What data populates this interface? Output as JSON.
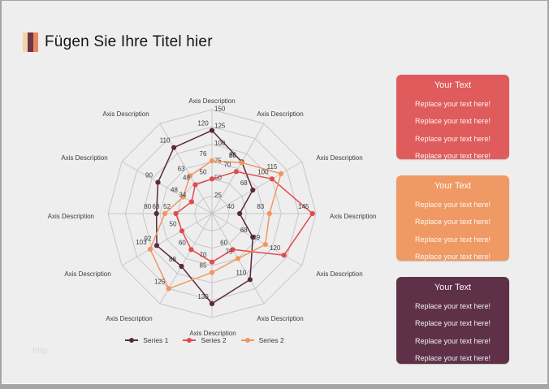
{
  "page": {
    "background": "#efeeef",
    "border_color": "#a6a4a6",
    "watermark": "http"
  },
  "header": {
    "title": "Fügen Sie Ihre Titel hier",
    "icon_bars": [
      "#f2d5a5",
      "#6e3648",
      "#e8875f"
    ]
  },
  "chart_data": {
    "type": "radar",
    "title": "",
    "axes": [
      "Axis Description",
      "Axis Description",
      "Axis Description",
      "Axis Description",
      "Axis Description",
      "Axis Description",
      "Axis Description",
      "Axis Description",
      "Axis Description",
      "Axis Description",
      "Axis Description",
      "Axis Description"
    ],
    "ring_ticks": [
      25,
      50,
      75,
      100,
      125,
      150
    ],
    "max": 150,
    "grid_on": true,
    "grid_color": "#c8c6c6",
    "label_color": "#3b3b3b",
    "legend_position": "bottom",
    "series": [
      {
        "name": "Series 1",
        "color": "#5a2a3c",
        "values": [
          120,
          86,
          68,
          40,
          68,
          110,
          130,
          88,
          92,
          80,
          90,
          110
        ]
      },
      {
        "name": "Series 2",
        "color": "#e14b4b",
        "values": [
          50,
          70,
          100,
          145,
          120,
          60,
          70,
          60,
          50,
          52,
          34,
          48
        ]
      },
      {
        "name": "Series 2",
        "color": "#ef975f",
        "values": [
          76,
          85,
          115,
          83,
          89,
          75,
          85,
          125,
          103,
          68,
          48,
          63
        ]
      }
    ]
  },
  "panels": [
    {
      "title": "Your Text",
      "color": "#e05b5b",
      "lines": [
        "Replace your text here!",
        "Replace your text here!",
        "Replace your text here!",
        "Replace your text here!"
      ]
    },
    {
      "title": "Your Text",
      "color": "#ef9964",
      "lines": [
        "Replace your text here!",
        "Replace your text here!",
        "Replace your text here!",
        "Replace your text here!"
      ]
    },
    {
      "title": "Your Text",
      "color": "#5e3148",
      "lines": [
        "Replace your text here!",
        "Replace your text here!",
        "Replace your text here!",
        "Replace your text here!"
      ]
    }
  ]
}
